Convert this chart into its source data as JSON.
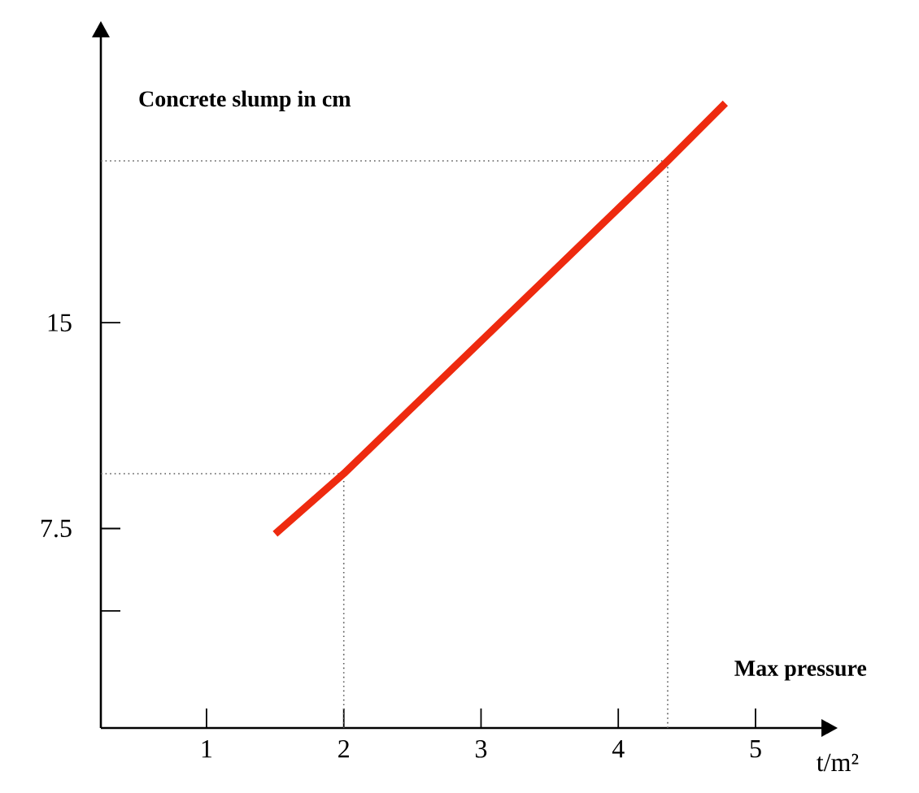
{
  "chart_data": {
    "type": "line",
    "xlabel": "Max pressure",
    "ylabel": "Concrete slump in cm",
    "annotations": [
      "t/m²"
    ],
    "x": [
      1.5,
      2,
      4.36,
      4.78
    ],
    "series": [
      {
        "color": "#ee2a0f",
        "values": [
          7.3,
          9.5,
          20.9,
          23
        ]
      }
    ],
    "xlim": [
      0.23,
      5.48
    ],
    "ylim": [
      0.23,
      25.4
    ],
    "xticks": [
      1,
      2,
      3,
      4,
      5
    ],
    "yticks": [
      {
        "value": 4.5,
        "label": null
      },
      7.5,
      15
    ],
    "ref_lines": [
      {
        "axis": "x",
        "value": 2,
        "line_style": "dotted"
      },
      {
        "axis": "x",
        "value": 4.36,
        "line_style": "dotted"
      },
      {
        "axis": "y",
        "value": 9.5,
        "line_style": "dotted"
      },
      {
        "axis": "y",
        "value": 20.9,
        "line_style": "dotted"
      }
    ],
    "grid": false,
    "marker": "none",
    "line_style": "solid"
  }
}
